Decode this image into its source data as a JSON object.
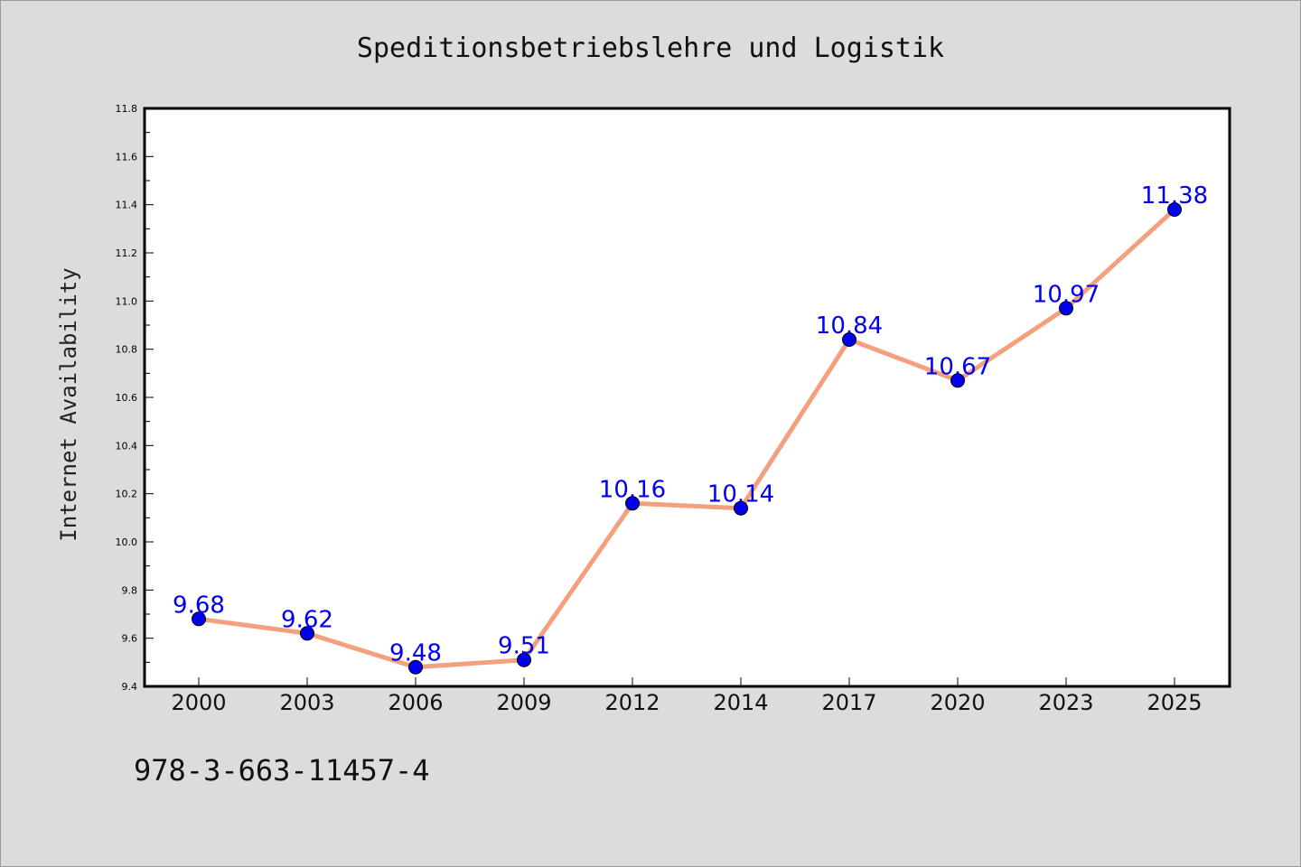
{
  "chart_data": {
    "type": "line",
    "title": "Speditionsbetriebslehre und Logistik",
    "xlabel": "",
    "ylabel": "Internet Availability",
    "categories": [
      "2000",
      "2003",
      "2006",
      "2009",
      "2012",
      "2014",
      "2017",
      "2020",
      "2023",
      "2025"
    ],
    "series": [
      {
        "values": [
          9.68,
          9.62,
          9.48,
          9.51,
          10.16,
          10.14,
          10.84,
          10.67,
          10.97,
          11.38
        ]
      }
    ],
    "data_labels": [
      "9.68",
      "9.62",
      "9.48",
      "9.51",
      "10.16",
      "10.14",
      "10.84",
      "10.67",
      "10.97",
      "11.38"
    ],
    "ylim": [
      9.4,
      11.8
    ],
    "yticks": [
      "9.4",
      "9.6",
      "9.8",
      "10.0",
      "10.2",
      "10.4",
      "10.6",
      "10.8",
      "11.0",
      "11.2",
      "11.4",
      "11.6",
      "11.8"
    ],
    "grid": false,
    "legend": "none",
    "line_color": "#f4a07e",
    "marker_color": "#0000ee"
  },
  "footer": {
    "isbn": "978-3-663-11457-4"
  }
}
